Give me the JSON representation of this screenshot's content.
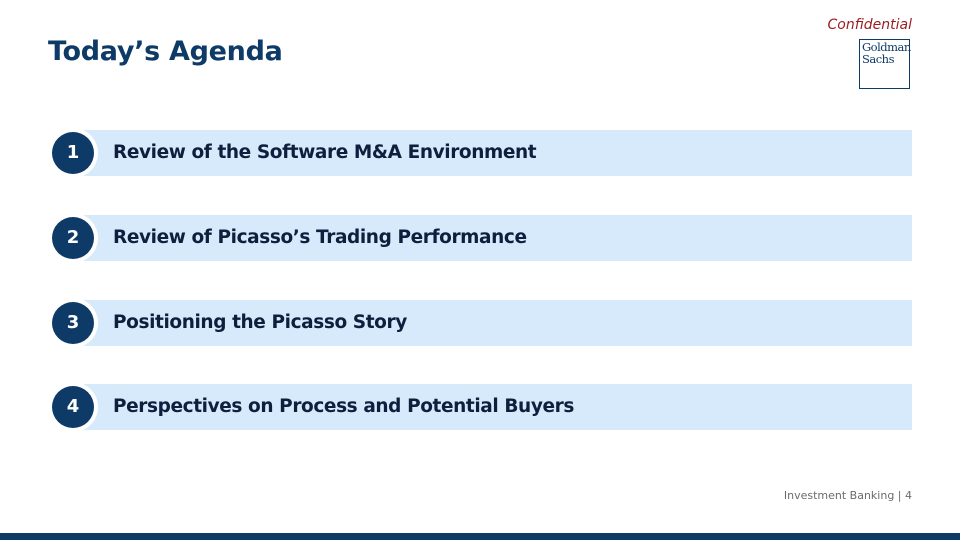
{
  "header": {
    "confidential_label": "Confidential",
    "title": "Today’s Agenda",
    "logo": {
      "line1": "Goldman",
      "line2": "Sachs"
    }
  },
  "agenda": [
    {
      "number": "1",
      "label": "Review of the Software M&A Environment"
    },
    {
      "number": "2",
      "label": "Review of Picasso’s Trading Performance"
    },
    {
      "number": "3",
      "label": "Positioning the Picasso Story"
    },
    {
      "number": "4",
      "label": "Perspectives on Process and Potential Buyers"
    }
  ],
  "footer": {
    "text": "Investment Banking | 4"
  },
  "colors": {
    "brand_navy": "#0d3a66",
    "item_background": "#d7eafb",
    "confidential_red": "#9b1b1f"
  }
}
